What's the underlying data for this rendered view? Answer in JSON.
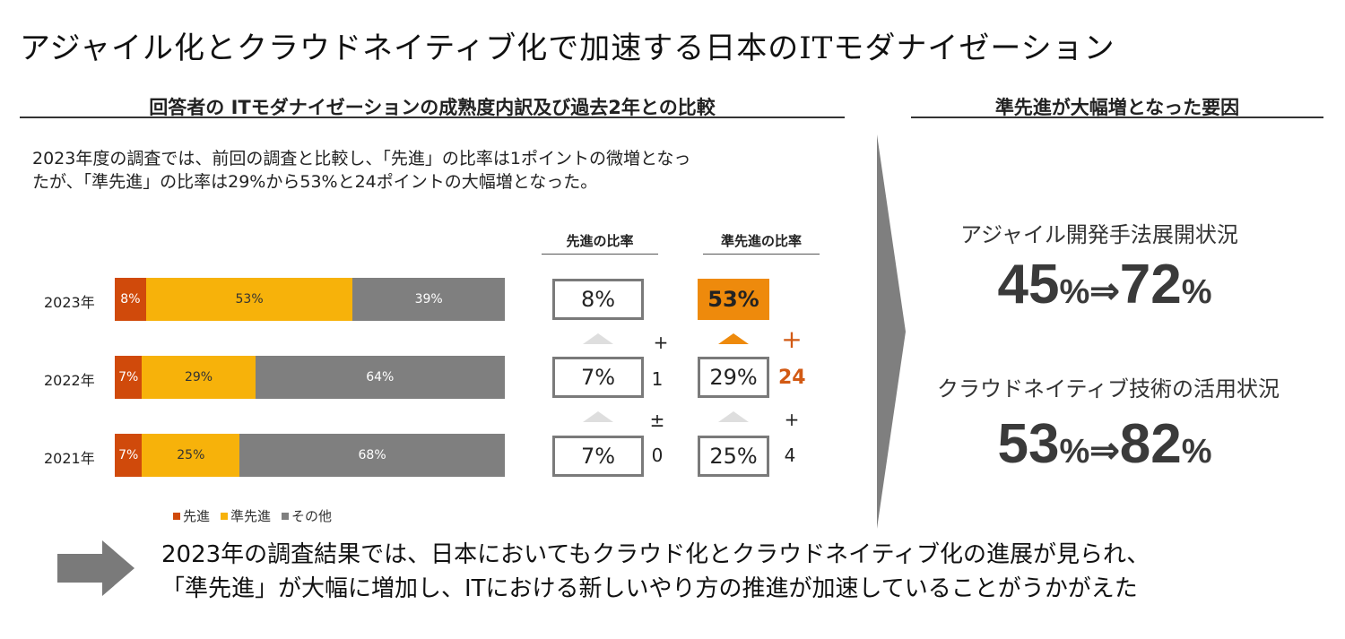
{
  "title": "アジャイル化とクラウドネイティブ化で加速する日本のITモダナイゼーション",
  "left_section": {
    "heading": "回答者の ITモダナイゼーションの成熟度内訳及び過去2年との比較",
    "intro_line1": "2023年度の調査では、前回の調査と比較し、「先進」の比率は1ポイントの微増となっ",
    "intro_line2": "たが、「準先進」の比率は29%から53%と24ポイントの大幅増となった。"
  },
  "colors": {
    "advanced": "#d04a0b",
    "semi_advanced": "#f7b20a",
    "other": "#7f7f7f",
    "highlight": "#ee8a0c",
    "delta_red": "#d25a14"
  },
  "chart_data": {
    "type": "bar",
    "orientation": "horizontal",
    "stacked": true,
    "normalized_percent": true,
    "categories": [
      "2023年",
      "2022年",
      "2021年"
    ],
    "series": [
      {
        "name": "先進",
        "values": [
          8,
          7,
          7
        ],
        "labels": [
          "8%",
          "7%",
          "7%"
        ]
      },
      {
        "name": "準先進",
        "values": [
          53,
          29,
          25
        ],
        "labels": [
          "53%",
          "29%",
          "25%"
        ]
      },
      {
        "name": "その他",
        "values": [
          39,
          64,
          68
        ],
        "labels": [
          "39%",
          "64%",
          "68%"
        ]
      }
    ],
    "xlim": [
      0,
      100
    ],
    "legend_position": "bottom-left",
    "grid": false
  },
  "comparison": {
    "advanced": {
      "heading": "先進の比率",
      "values": [
        "8%",
        "7%",
        "7%"
      ],
      "deltas": [
        {
          "sign": "+",
          "amount": "1"
        },
        {
          "sign": "±",
          "amount": "0"
        }
      ]
    },
    "semi_advanced": {
      "heading": "準先進の比率",
      "values": [
        "53%",
        "29%",
        "25%"
      ],
      "deltas": [
        {
          "sign": "+",
          "amount": "24"
        },
        {
          "sign": "+",
          "amount": "4"
        }
      ]
    }
  },
  "right_section": {
    "heading": "準先進が大幅増となった要因",
    "factors": [
      {
        "label": "アジャイル開発手法展開状況",
        "from": "45",
        "to": "72",
        "unit": "%",
        "arrow": "⇒"
      },
      {
        "label": "クラウドネイティブ技術の活用状況",
        "from": "53",
        "to": "82",
        "unit": "%",
        "arrow": "⇒"
      }
    ]
  },
  "conclusion": {
    "line1": "2023年の調査結果では、日本においてもクラウド化とクラウドネイティブ化の進展が見られ、",
    "line2": "「準先進」が大幅に増加し、ITにおける新しいやり方の推進が加速していることがうかがえた"
  },
  "icons": {
    "conclusion_arrow": "right-arrow-icon",
    "section_chevron": "chevron-right-icon"
  }
}
